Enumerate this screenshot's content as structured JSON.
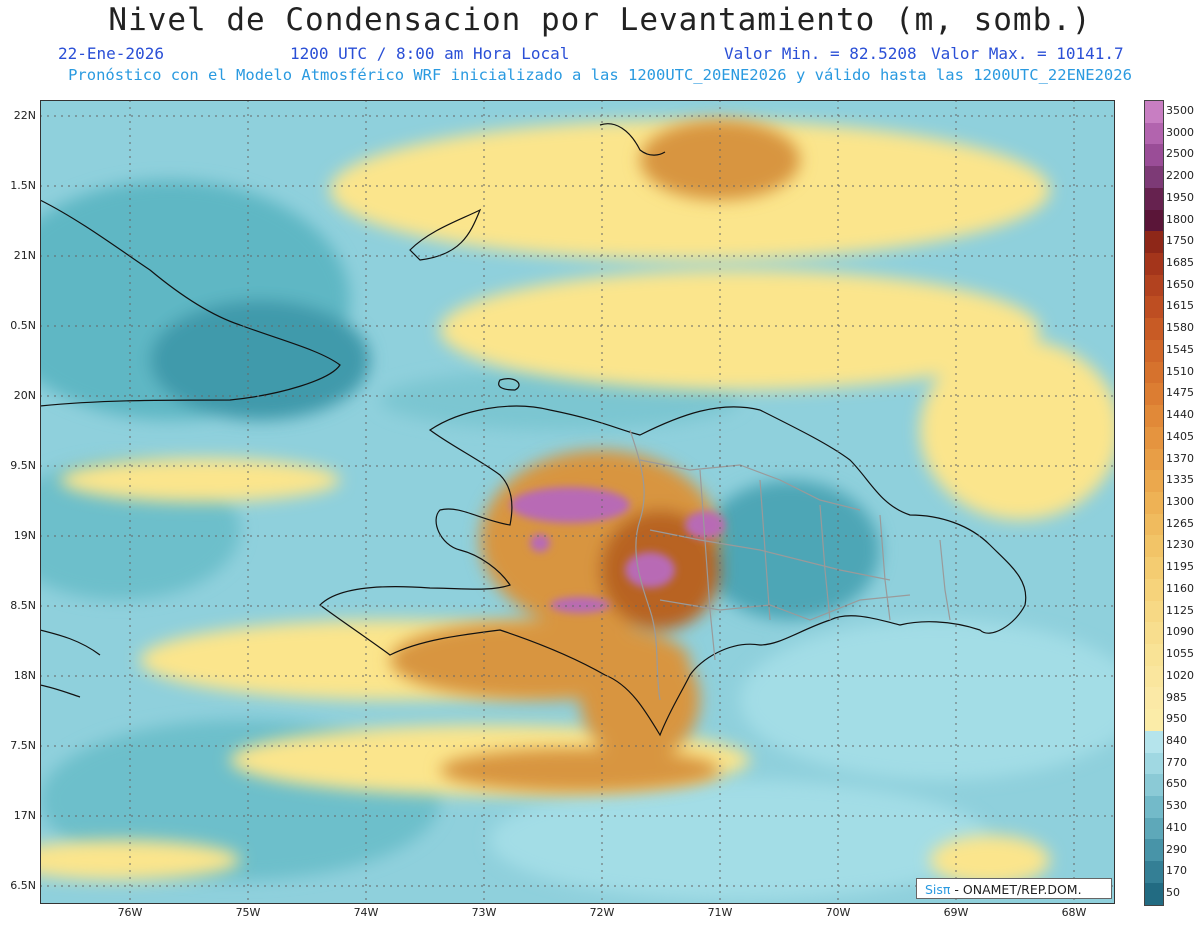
{
  "header": {
    "title": "Nivel de Condensacion por Levantamiento (m, somb.)",
    "date": "22-Ene-2026",
    "time": "1200 UTC / 8:00 am Hora Local",
    "min_label": "Valor Min. = 82.5208",
    "max_label": "Valor Max. = 10141.7",
    "forecast": "Pronóstico con el Modelo Atmosférico WRF inicializado a las 1200UTC_20ENE2026 y válido hasta las  1200UTC_22ENE2026"
  },
  "map": {
    "lat_labels": [
      "22N",
      "1.5N",
      "21N",
      "0.5N",
      "20N",
      "9.5N",
      "19N",
      "8.5N",
      "18N",
      "7.5N",
      "17N",
      "6.5N"
    ],
    "lon_labels": [
      "76W",
      "75W",
      "74W",
      "73W",
      "72W",
      "71W",
      "70W",
      "69W",
      "68W"
    ],
    "colors": {
      "teal": "#5fb7c4",
      "light_teal": "#a3dde6",
      "yellow": "#fbe58c",
      "orange": "#d8953f",
      "brown": "#b86420",
      "purple": "#b86bb5"
    }
  },
  "legend": {
    "levels": [
      "3500",
      "3000",
      "2500",
      "2200",
      "1950",
      "1800",
      "1750",
      "1685",
      "1650",
      "1615",
      "1580",
      "1545",
      "1510",
      "1475",
      "1440",
      "1405",
      "1370",
      "1335",
      "1300",
      "1265",
      "1230",
      "1195",
      "1160",
      "1125",
      "1090",
      "1055",
      "1020",
      "985",
      "950",
      "840",
      "770",
      "650",
      "530",
      "410",
      "290",
      "170",
      "50"
    ],
    "colors": [
      "#c87ec2",
      "#b264ae",
      "#9a4d97",
      "#7d3a76",
      "#66224f",
      "#5a1538",
      "#8e2718",
      "#a4351b",
      "#b2421f",
      "#be4e22",
      "#c85b25",
      "#d06729",
      "#d6722d",
      "#dc7d32",
      "#e18938",
      "#e5943f",
      "#e89e46",
      "#eba84d",
      "#eeb255",
      "#f0bb5e",
      "#f2c467",
      "#f4cc71",
      "#f6d37b",
      "#f7d985",
      "#f8de8e",
      "#f9e396",
      "#fae69e",
      "#fbe9a6",
      "#fbeca8",
      "#b5e4ec",
      "#a0d8e2",
      "#8bcad6",
      "#73bac9",
      "#5ea8b9",
      "#4894a8",
      "#347f95",
      "#226b82"
    ]
  },
  "credit": {
    "brand": "Sis",
    "pi": "π",
    "text": " - ONAMET/REP.DOM."
  }
}
